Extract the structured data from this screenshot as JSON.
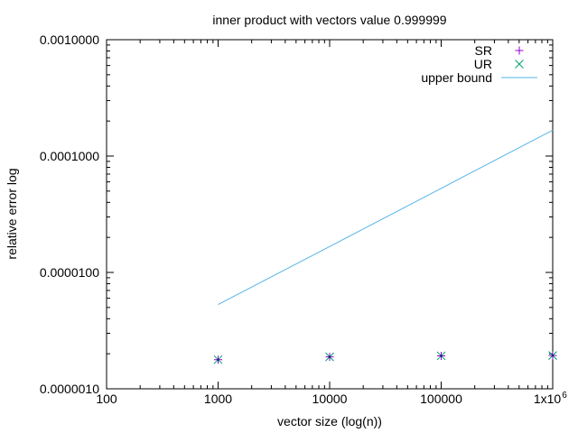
{
  "chart_data": {
    "type": "scatter",
    "title": "inner product with vectors value 0.999999",
    "xlabel": "vector size (log(n))",
    "ylabel": "relative error log",
    "x_scale": "log",
    "y_scale": "log",
    "xlim": [
      100,
      1000000
    ],
    "ylim": [
      1e-06,
      0.001
    ],
    "x_ticks": [
      {
        "value": 100,
        "label": "100"
      },
      {
        "value": 1000,
        "label": "1000"
      },
      {
        "value": 10000,
        "label": "10000"
      },
      {
        "value": 100000,
        "label": "100000"
      },
      {
        "value": 1000000,
        "label": "1x10",
        "sup": "6"
      }
    ],
    "y_ticks": [
      {
        "value": 1e-06,
        "label": "0.0000010"
      },
      {
        "value": 1e-05,
        "label": "0.0000100"
      },
      {
        "value": 0.0001,
        "label": "0.0001000"
      },
      {
        "value": 0.001,
        "label": "0.0010000"
      }
    ],
    "grid": false,
    "legend_position": "top-right",
    "series": [
      {
        "name": "SR",
        "mark": "plus",
        "color": "#9400d3",
        "x": [
          1000,
          10000,
          100000,
          1000000
        ],
        "y": [
          1.78e-06,
          1.88e-06,
          1.92e-06,
          1.93e-06
        ]
      },
      {
        "name": "UR",
        "mark": "cross",
        "color": "#009e73",
        "x": [
          1000,
          10000,
          100000,
          1000000
        ],
        "y": [
          1.78e-06,
          1.88e-06,
          1.92e-06,
          1.93e-06
        ]
      },
      {
        "name": "upper bound",
        "mark": "line",
        "color": "#56b4e9",
        "x": [
          1000,
          10000,
          100000,
          1000000
        ],
        "y": [
          5.3e-06,
          1.67e-05,
          5.28e-05,
          0.000167
        ]
      }
    ]
  }
}
